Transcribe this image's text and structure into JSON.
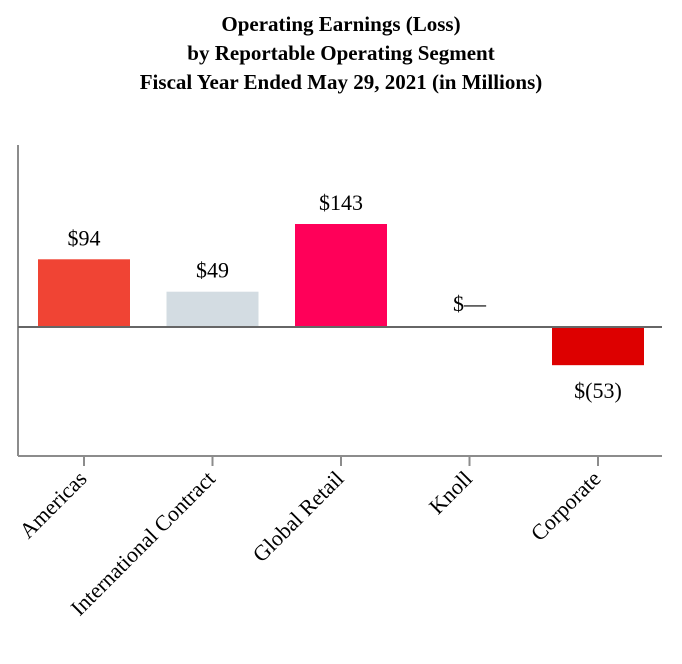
{
  "chart_data": {
    "type": "bar",
    "title_lines": [
      "Operating Earnings (Loss)",
      "by Reportable Operating Segment",
      "Fiscal Year Ended May 29, 2021 (in Millions)"
    ],
    "categories": [
      "Americas",
      "International Contract",
      "Global Retail",
      "Knoll",
      "Corporate"
    ],
    "values": [
      94,
      49,
      143,
      0,
      -53
    ],
    "data_labels": [
      "$94",
      "$49",
      "$143",
      "$—",
      "$(53)"
    ],
    "bar_colors": [
      "#f04434",
      "#d3dce2",
      "#ff0059",
      "#ffffff",
      "#dd0000"
    ],
    "xlabel": "",
    "ylabel": "",
    "ylim": [
      -180,
      250
    ],
    "grid": false,
    "legend": "none"
  },
  "colors": {
    "axis": "#8c8c8c",
    "zero_line": "#666666",
    "text": "#000000"
  }
}
